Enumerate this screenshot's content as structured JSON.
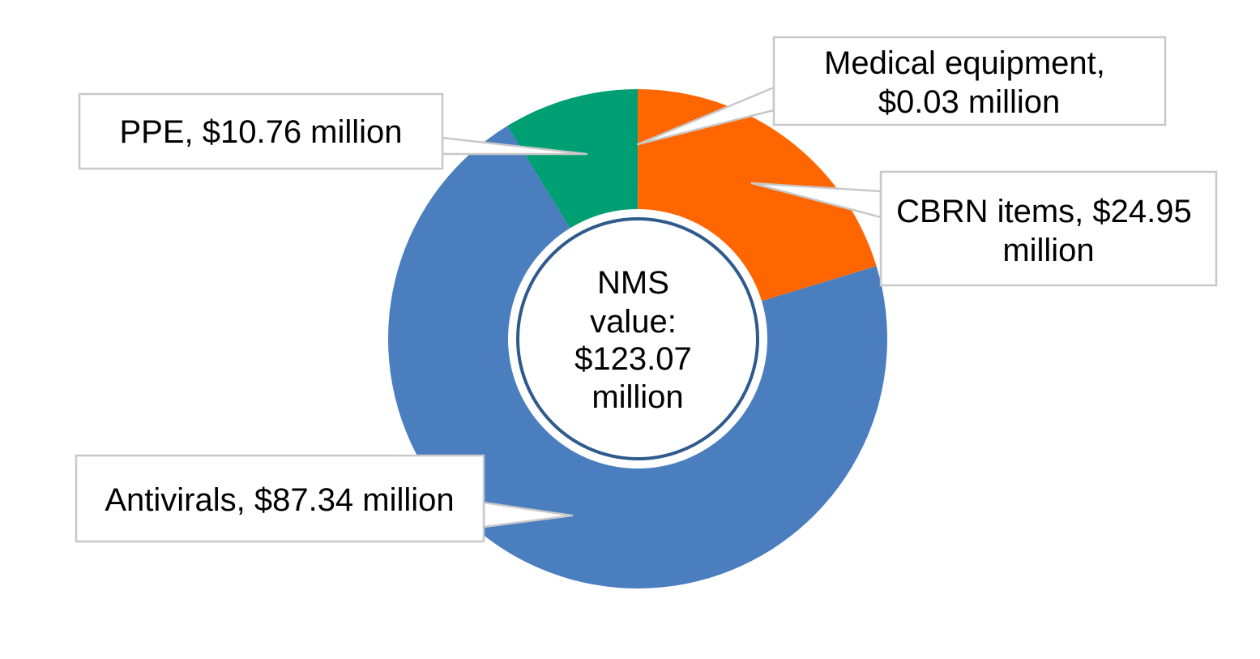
{
  "chart_data": {
    "type": "pie",
    "variant": "donut",
    "center_label": [
      "NMS",
      "value:",
      "$123.07",
      "million"
    ],
    "total": 123.07,
    "unit": "$ million",
    "slices": [
      {
        "name": "Medical equipment",
        "value": 0.03,
        "label_lines": [
          "Medical equipment,",
          "$0.03 million"
        ],
        "color": "#FF6600"
      },
      {
        "name": "CBRN items",
        "value": 24.95,
        "label_lines": [
          "CBRN items, $24.95",
          "million"
        ],
        "color": "#FF6600"
      },
      {
        "name": "Antivirals",
        "value": 87.34,
        "label_lines": [
          "Antivirals,  $87.34 million"
        ],
        "color": "#4A7EBF"
      },
      {
        "name": "PPE",
        "value": 10.76,
        "label_lines": [
          "PPE,  $10.76 million"
        ],
        "color": "#009E73"
      }
    ],
    "legend": "none",
    "label_style": "callouts"
  }
}
